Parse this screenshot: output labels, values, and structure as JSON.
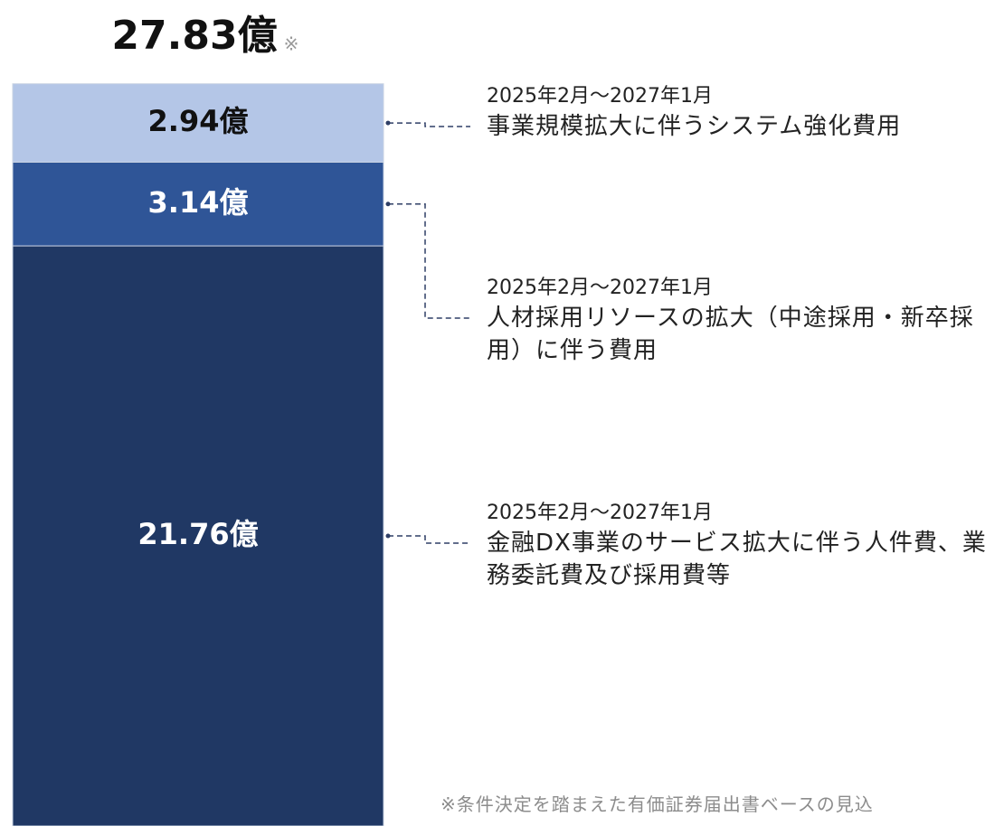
{
  "chart_data": {
    "type": "stacked_bar",
    "total": {
      "value": 27.83,
      "label": "27.83億"
    },
    "total_note": "※",
    "series": [
      {
        "name": "金融DX事業のサービス拡大に伴う人件費、業務委託費及び採用費等",
        "period": "2025年2月～2027年1月",
        "color": "#203864",
        "values": [
          21.76
        ],
        "value_labels": [
          "21.76億"
        ]
      },
      {
        "name": "人材採用リソースの拡大（中途採用・新卒採用）に伴う費用",
        "period": "2025年2月～2027年1月",
        "color": "#2f5597",
        "values": [
          3.14
        ],
        "value_labels": [
          "3.14億"
        ]
      },
      {
        "name": "事業規模拡大に伴うシステム強化費用",
        "period": "2025年2月～2027年1月",
        "color": "#b4c6e7",
        "values": [
          2.94
        ],
        "value_labels": [
          "2.94億"
        ]
      }
    ],
    "footnote": "※条件決定を踏まえた有価証券届出書ベースの見込"
  }
}
